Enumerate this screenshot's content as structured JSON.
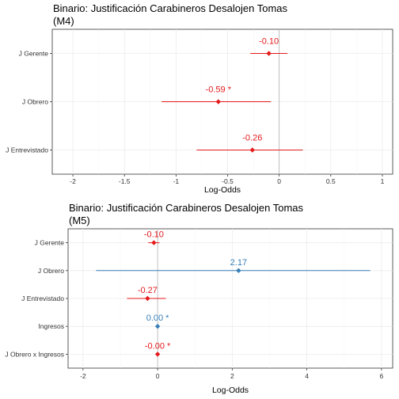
{
  "colors": {
    "negative": "#e41a1c",
    "positive": "#377eb8",
    "zero_line": "#b3b3b3"
  },
  "chart_data": [
    {
      "type": "forest",
      "title_lines": [
        "Binario: Justificación Carabineros Desalojen Tomas",
        "(M4)"
      ],
      "xlabel": "Log-Odds",
      "xlim": [
        -2.2,
        1.1
      ],
      "xticks": [
        -2,
        -1.5,
        -1,
        -0.5,
        0,
        0.5,
        1
      ],
      "xtick_labels": [
        "-2",
        "-1.5",
        "-1",
        "-0.5",
        "0",
        "0.5",
        "1"
      ],
      "rows": [
        {
          "label": "J Gerente",
          "estimate": -0.1,
          "low": -0.28,
          "high": 0.08,
          "text": "-0.10",
          "color": "#e41a1c"
        },
        {
          "label": "J Obrero",
          "estimate": -0.59,
          "low": -1.14,
          "high": -0.08,
          "text": "-0.59 *",
          "color": "#e41a1c"
        },
        {
          "label": "J Entrevistado",
          "estimate": -0.26,
          "low": -0.8,
          "high": 0.23,
          "text": "-0.26",
          "color": "#e41a1c"
        }
      ]
    },
    {
      "type": "forest",
      "title_lines": [
        "Binario: Justificación Carabineros Desalojen Tomas",
        "(M5)"
      ],
      "xlabel": "Log-Odds",
      "xlim": [
        -2.4,
        6.3
      ],
      "xticks": [
        -2,
        0,
        2,
        4,
        6
      ],
      "xtick_labels": [
        "-2",
        "0",
        "2",
        "4",
        "6"
      ],
      "rows": [
        {
          "label": "J Gerente",
          "estimate": -0.1,
          "low": -0.25,
          "high": 0.05,
          "text": "-0.10",
          "color": "#e41a1c"
        },
        {
          "label": "J Obrero",
          "estimate": 2.17,
          "low": -1.65,
          "high": 5.7,
          "text": "2.17",
          "color": "#377eb8"
        },
        {
          "label": "J Entrevistado",
          "estimate": -0.27,
          "low": -0.82,
          "high": 0.22,
          "text": "-0.27",
          "color": "#e41a1c"
        },
        {
          "label": "Ingresos",
          "estimate": 0.0,
          "low": 0.0,
          "high": 0.0,
          "text": "0.00 *",
          "color": "#377eb8"
        },
        {
          "label": "J Obrero x Ingresos",
          "estimate": 0.0,
          "low": 0.0,
          "high": 0.0,
          "text": "-0.00 *",
          "color": "#e41a1c"
        }
      ]
    }
  ]
}
